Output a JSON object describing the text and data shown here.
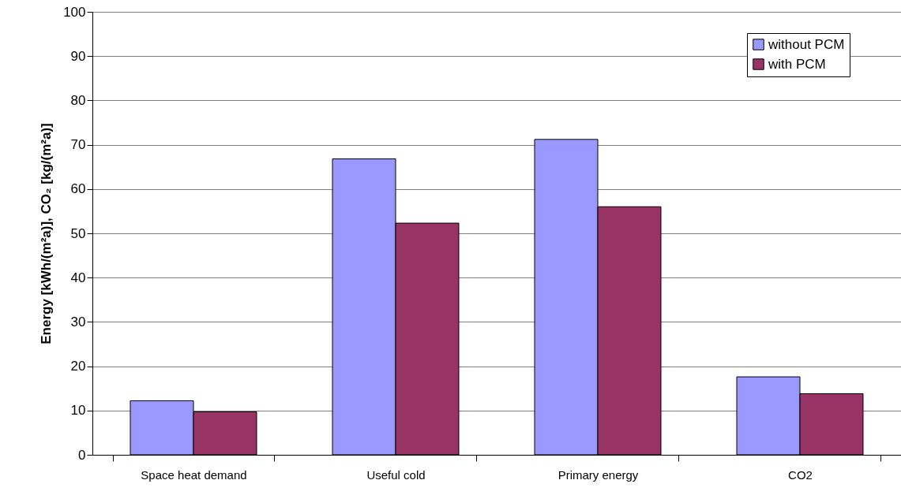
{
  "chart_data": {
    "type": "bar",
    "ylabel": "Energy [kWh/(m²a)], CO₂ [kg/(m²a)]",
    "categories": [
      "Space heat demand",
      "Useful cold",
      "Primary energy",
      "CO2"
    ],
    "series": [
      {
        "name": "without PCM",
        "color": "#9999ff",
        "values": [
          12.2,
          66.8,
          71.2,
          17.6
        ]
      },
      {
        "name": "with PCM",
        "color": "#993366",
        "values": [
          9.7,
          52.3,
          56.0,
          13.8
        ]
      }
    ],
    "ylim": [
      0,
      100
    ],
    "yticks": [
      0,
      10,
      20,
      30,
      40,
      50,
      60,
      70,
      80,
      90,
      100
    ],
    "grid": "y",
    "legend": "top right"
  }
}
